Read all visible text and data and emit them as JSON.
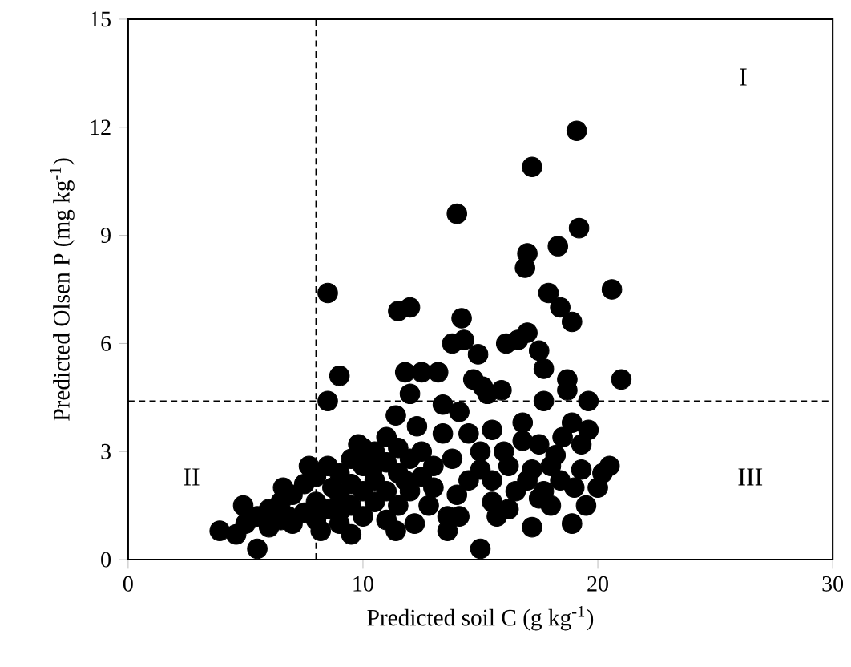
{
  "chart_data": {
    "type": "scatter",
    "xlabel": "Predicted soil C (g kg$^{-1}$)",
    "ylabel": "Predicted Olsen P (mg kg$^{-1}$)",
    "xlim": [
      0,
      30
    ],
    "ylim": [
      0,
      15
    ],
    "xticks": [
      0,
      10,
      20,
      30
    ],
    "yticks": [
      0,
      3,
      6,
      9,
      12,
      15
    ],
    "marker": "circle",
    "series": [
      {
        "color": "#000000",
        "x": [
          19.1,
          17.2,
          14.0,
          19.2,
          17.0,
          16.9,
          18.3,
          20.6,
          8.5,
          17.9,
          18.4,
          18.9,
          11.5,
          12.0,
          14.2,
          13.8,
          14.3,
          14.9,
          16.1,
          16.6,
          17.0,
          17.5,
          17.7,
          21.0,
          9.0,
          8.5,
          11.8,
          12.5,
          13.2,
          12.0,
          14.7,
          15.1,
          15.9,
          15.3,
          18.7,
          18.7,
          17.7,
          19.6,
          13.4,
          14.1,
          15.0,
          18.9,
          13.6,
          14.1,
          15.5,
          17.2,
          17.5,
          20.0,
          20.2,
          19.6,
          19.3,
          16.8,
          16.8,
          15.5,
          14.5,
          13.4,
          13.8,
          15.0,
          16.2,
          17.2,
          18.2,
          18.4,
          17.7,
          15.7,
          16.2,
          18.9,
          19.3,
          20.5,
          3.9,
          4.9,
          5.5,
          4.6,
          6.6,
          6.8,
          7.7,
          8.2,
          9.5,
          11.4,
          9.8,
          11.4,
          12.3,
          11.8,
          13.6,
          8.7,
          10.4,
          9.1,
          5.0,
          5.5,
          6.0,
          6.0,
          6.5,
          6.5,
          7.0,
          7.0,
          7.5,
          7.5,
          8.0,
          8.0,
          8.0,
          8.5,
          8.5,
          9.0,
          9.0,
          9.0,
          9.5,
          9.5,
          9.5,
          10.0,
          10.0,
          10.0,
          10.0,
          10.5,
          10.5,
          10.5,
          11.0,
          11.0,
          11.0,
          11.0,
          11.5,
          11.5,
          11.5,
          12.0,
          12.0,
          12.5,
          12.5,
          13.0,
          13.0,
          12.8,
          12.2,
          14.5,
          15.5,
          16.0,
          16.5,
          17.0,
          17.5,
          18.0,
          18.5,
          19.0,
          19.5,
          18.0,
          14.0,
          15.0
        ],
        "values": [
          11.9,
          10.9,
          9.6,
          9.2,
          8.5,
          8.1,
          8.7,
          7.5,
          7.4,
          7.4,
          7.0,
          6.6,
          6.9,
          7.0,
          6.7,
          6.0,
          6.1,
          5.7,
          6.0,
          6.1,
          6.3,
          5.8,
          5.3,
          5.0,
          5.1,
          4.4,
          5.2,
          5.2,
          5.2,
          4.6,
          5.0,
          4.8,
          4.7,
          4.6,
          5.0,
          4.7,
          4.4,
          4.4,
          4.3,
          4.1,
          0.3,
          1.0,
          0.8,
          1.2,
          1.6,
          0.9,
          1.7,
          2.0,
          2.4,
          3.6,
          3.2,
          3.8,
          3.3,
          3.6,
          3.5,
          3.5,
          2.8,
          2.5,
          2.6,
          2.5,
          2.9,
          2.2,
          1.9,
          1.2,
          1.4,
          3.8,
          2.5,
          2.6,
          0.8,
          1.5,
          0.3,
          0.7,
          2.0,
          1.2,
          2.6,
          0.8,
          0.7,
          0.8,
          3.2,
          4.0,
          3.7,
          2.2,
          1.2,
          2.0,
          2.5,
          1.4,
          1.0,
          1.2,
          0.9,
          1.4,
          1.1,
          1.6,
          1.0,
          1.8,
          1.3,
          2.1,
          1.1,
          1.6,
          2.3,
          1.4,
          2.6,
          1.0,
          1.8,
          2.4,
          1.5,
          2.1,
          2.8,
          1.2,
          1.9,
          2.6,
          3.1,
          1.6,
          2.2,
          3.0,
          1.1,
          1.9,
          2.7,
          3.4,
          1.5,
          2.4,
          3.1,
          1.9,
          2.8,
          2.3,
          3.0,
          2.0,
          2.6,
          1.5,
          1.0,
          2.2,
          2.2,
          3.0,
          1.9,
          2.2,
          3.2,
          1.5,
          3.4,
          2.0,
          1.5,
          2.6,
          1.8,
          3.0
        ]
      }
    ],
    "ref_lines": [
      {
        "axis": "x",
        "value": 8,
        "line_style": "dashed",
        "color": "#000000"
      },
      {
        "axis": "y",
        "value": 4.4,
        "line_style": "dashed",
        "color": "#000000"
      }
    ],
    "annotations": [
      "I",
      "II",
      "III"
    ]
  }
}
